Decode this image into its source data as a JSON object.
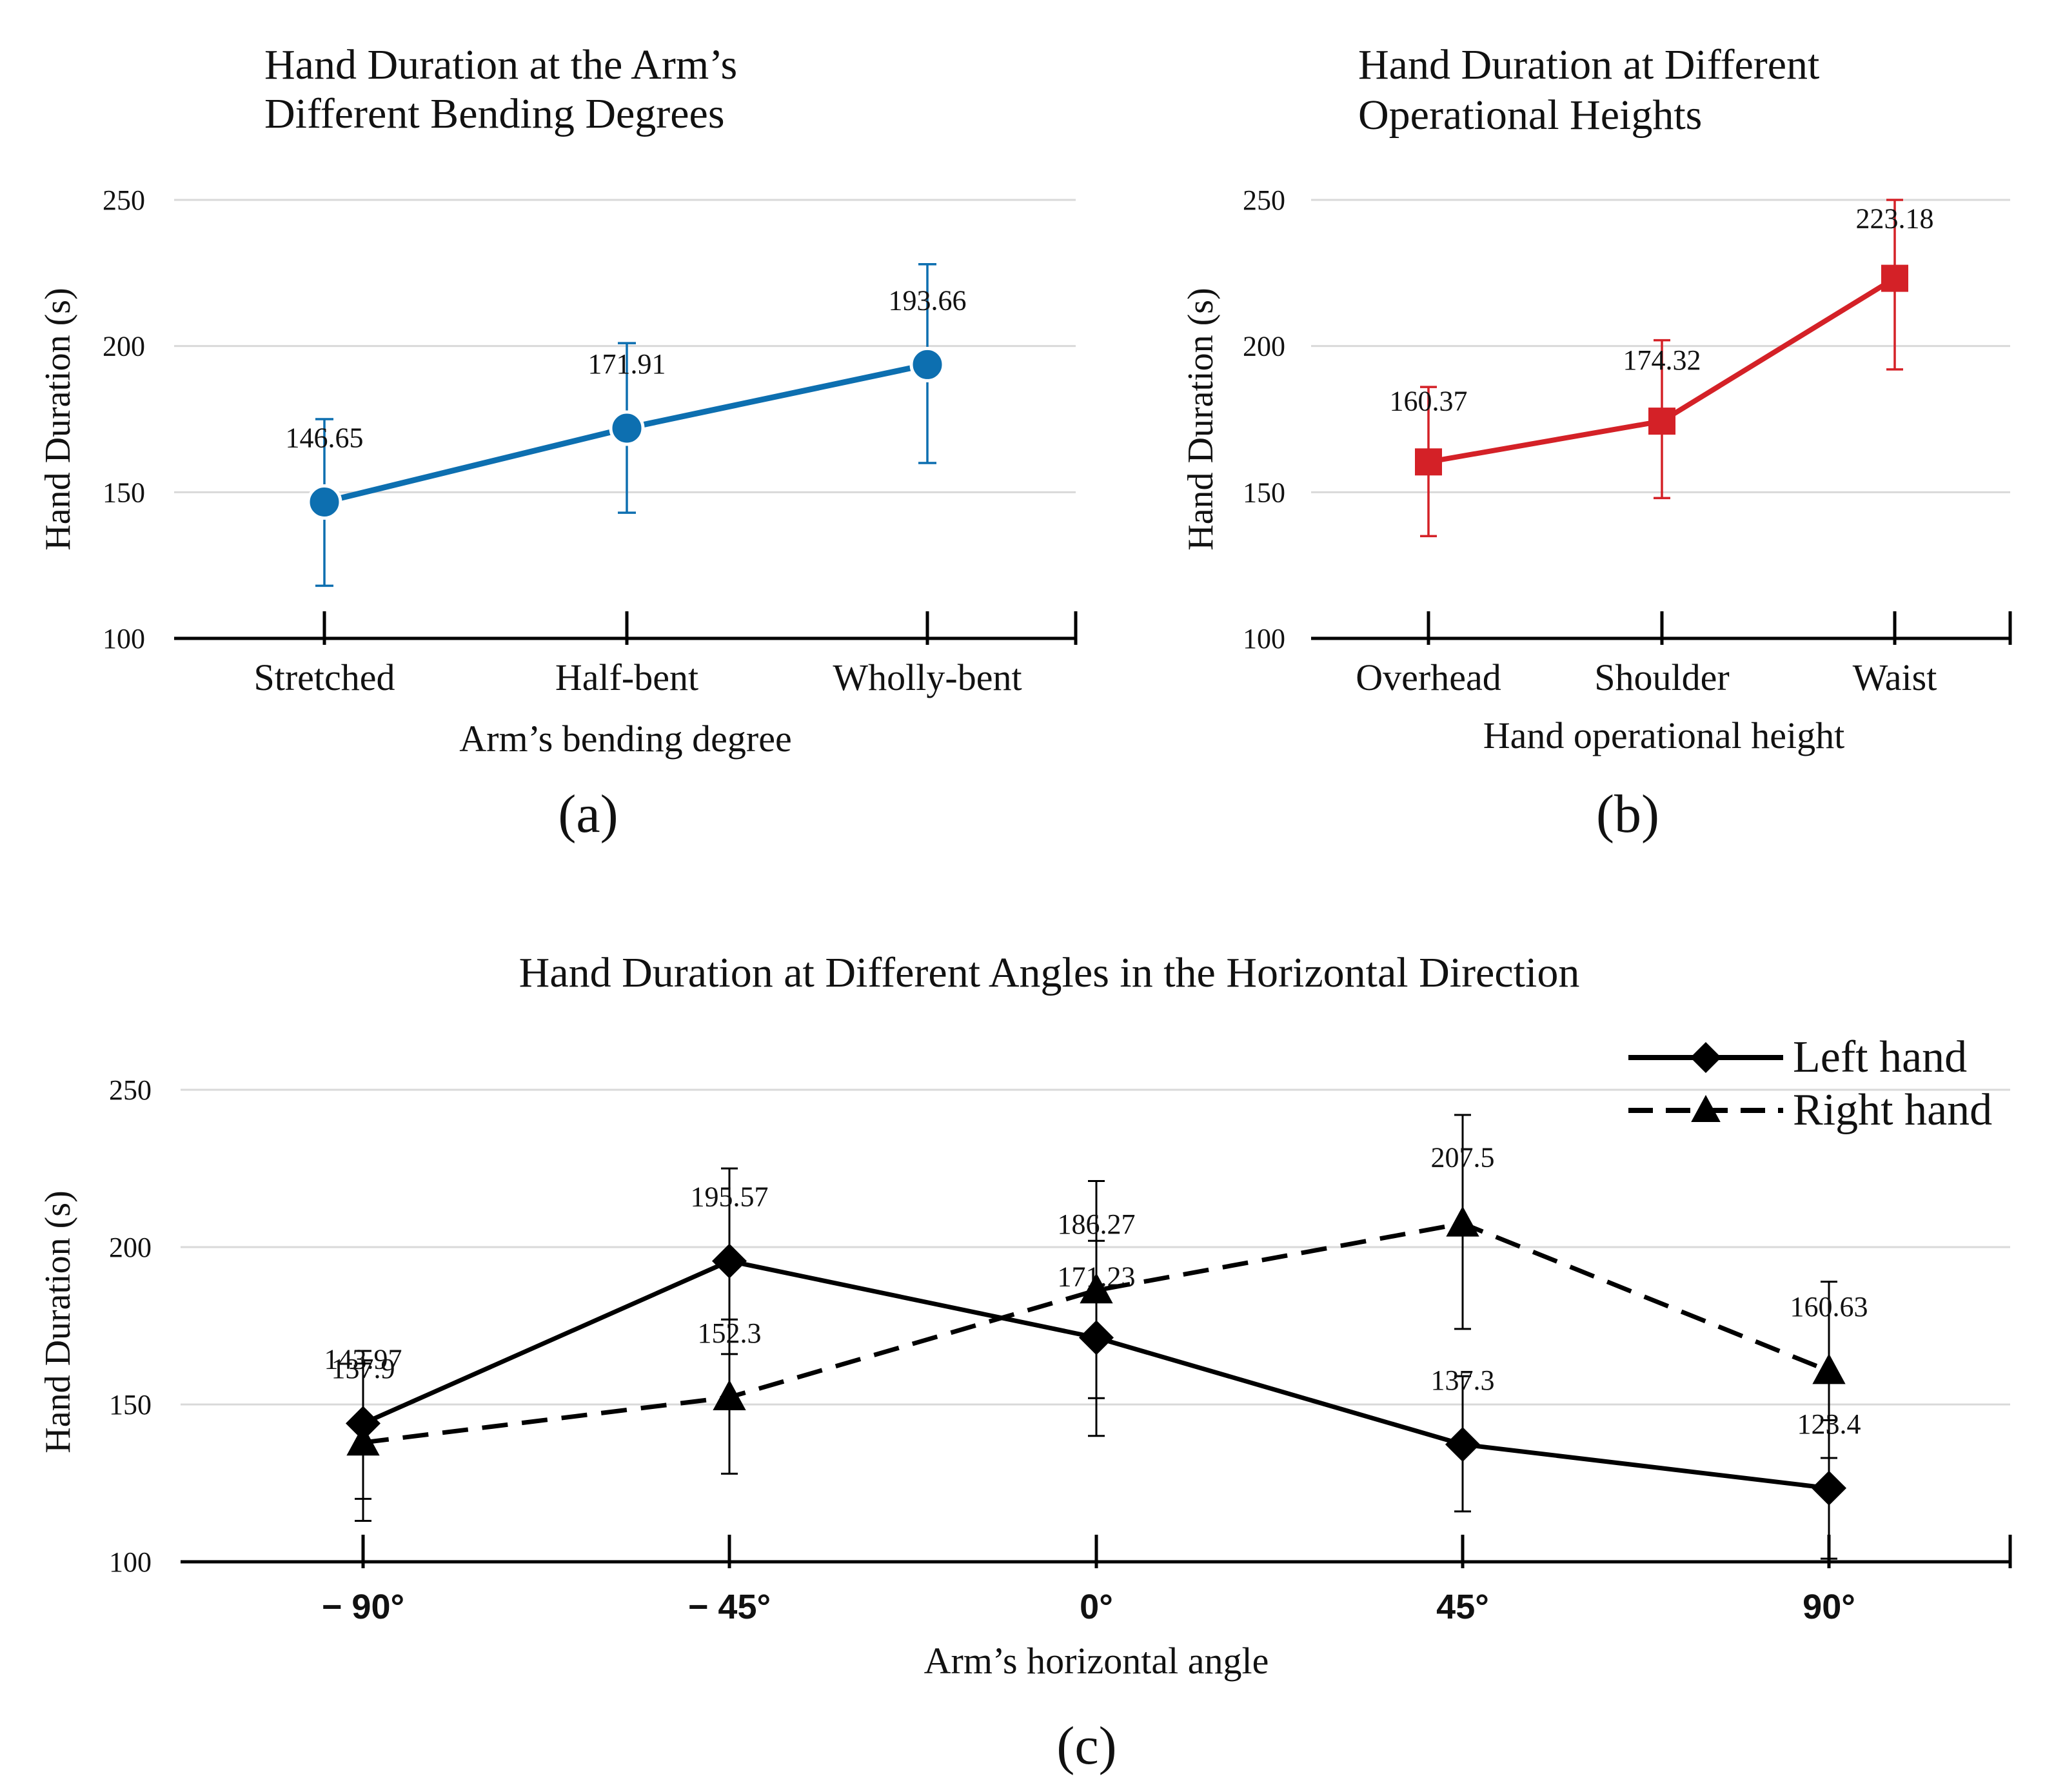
{
  "chart_data": [
    {
      "id": "a",
      "type": "line",
      "panel_label": "(a)",
      "title_lines": [
        "Hand Duration at the Arm’s",
        "Different Bending Degrees"
      ],
      "xlabel": "Arm’s bending degree",
      "ylabel": "Hand Duration (s)",
      "ylim": [
        100,
        250
      ],
      "yticks": [
        100,
        150,
        200,
        250
      ],
      "grid": true,
      "color": "#0d6fb0",
      "marker": "circle",
      "categories": [
        "Stretched",
        "Half-bent",
        "Wholly-bent"
      ],
      "values": [
        146.65,
        171.91,
        193.66
      ],
      "labels": [
        "146.65",
        "171.91",
        "193.66"
      ],
      "error_low": [
        118,
        143,
        160
      ],
      "error_high": [
        175,
        201,
        228
      ]
    },
    {
      "id": "b",
      "type": "line",
      "panel_label": "(b)",
      "title_lines": [
        "Hand Duration at Different",
        "Operational Heights"
      ],
      "xlabel": "Hand operational height",
      "ylabel": "Hand Duration (s)",
      "ylim": [
        100,
        250
      ],
      "yticks": [
        100,
        150,
        200,
        250
      ],
      "grid": true,
      "color": "#d42127",
      "marker": "square",
      "categories": [
        "Overhead",
        "Shoulder",
        "Waist"
      ],
      "values": [
        160.37,
        174.32,
        223.18
      ],
      "labels": [
        "160.37",
        "174.32",
        "223.18"
      ],
      "error_low": [
        135,
        148,
        192
      ],
      "error_high": [
        186,
        202,
        250
      ]
    },
    {
      "id": "c",
      "type": "line",
      "panel_label": "(c)",
      "title_lines": [
        "Hand Duration at Different Angles in the Horizontal Direction"
      ],
      "xlabel": "Arm’s horizontal angle",
      "ylabel": "Hand Duration (s)",
      "ylim": [
        100,
        250
      ],
      "yticks": [
        100,
        150,
        200,
        250
      ],
      "grid": true,
      "legend_position": "top-right",
      "categories": [
        "− 90°",
        "− 45°",
        "0°",
        "45°",
        "90°"
      ],
      "series": [
        {
          "name": "Left hand",
          "color": "#000000",
          "dash": false,
          "marker": "diamond",
          "values": [
            143.97,
            195.57,
            171.23,
            137.3,
            123.4
          ],
          "labels": [
            "143.97",
            "195.57",
            "171.23",
            "137.3",
            "123.4"
          ],
          "error_low": [
            120,
            166,
            140,
            116,
            101
          ],
          "error_high": [
            167,
            225,
            202,
            159,
            145
          ]
        },
        {
          "name": "Right hand",
          "color": "#000000",
          "dash": true,
          "marker": "triangle",
          "values": [
            137.9,
            152.3,
            186.27,
            207.5,
            160.63
          ],
          "labels": [
            "137.9",
            "152.3",
            "186.27",
            "207.5",
            "160.63"
          ],
          "error_low": [
            113,
            128,
            152,
            174,
            133
          ],
          "error_high": [
            163,
            177,
            221,
            242,
            189
          ]
        }
      ]
    }
  ]
}
